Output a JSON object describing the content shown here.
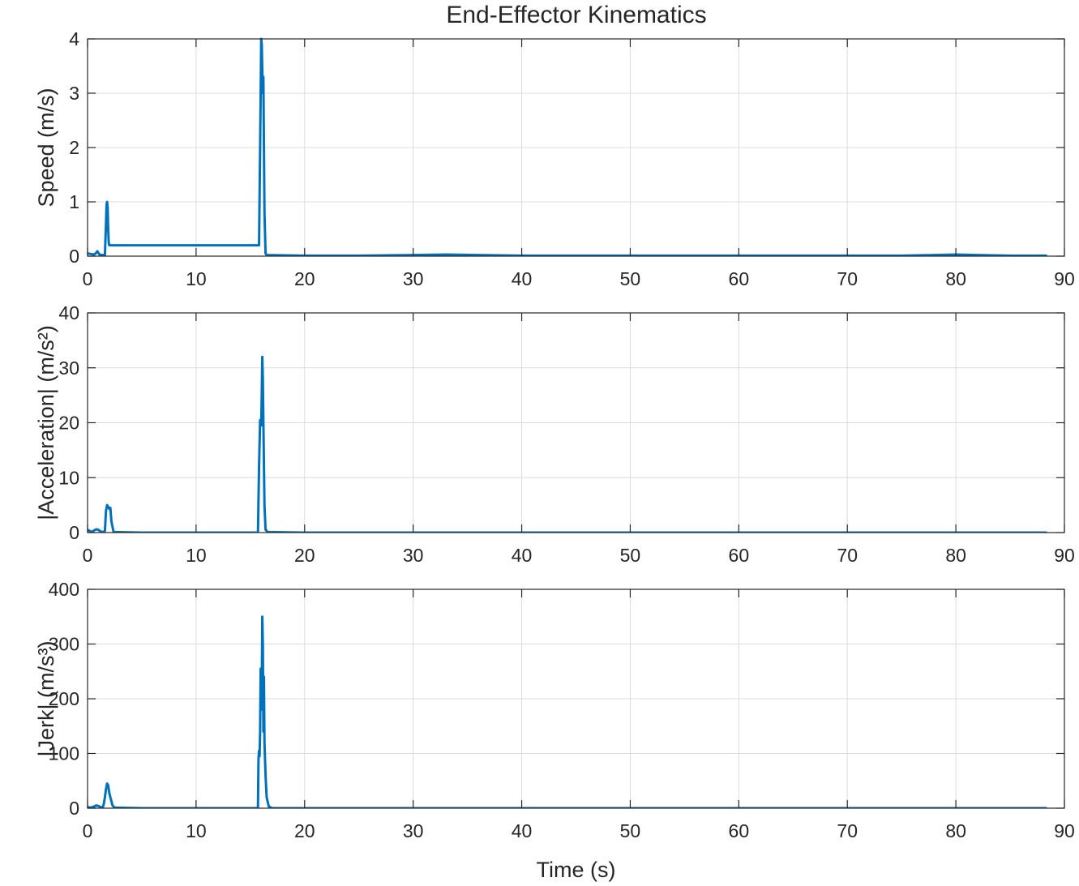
{
  "figure": {
    "title": "End-Effector Kinematics",
    "line_color": "#0072BD",
    "grid_color": "#dcdcdc",
    "axis_color": "#262626"
  },
  "chart_data": [
    {
      "type": "line",
      "title": "End-Effector Kinematics",
      "ylabel": "Speed (m/s)",
      "xlabel": "",
      "xlim": [
        0,
        90
      ],
      "ylim": [
        0,
        4
      ],
      "xticks": [
        0,
        10,
        20,
        30,
        40,
        50,
        60,
        70,
        80,
        90
      ],
      "yticks": [
        0,
        1,
        2,
        3,
        4
      ],
      "grid": true,
      "series": [
        {
          "x": [
            0,
            0.3,
            0.6,
            0.8,
            0.9,
            1.0,
            1.1,
            1.3,
            1.6,
            1.7,
            1.75,
            1.8,
            1.85,
            1.9,
            1.95,
            2.0,
            2.1,
            5,
            10,
            15,
            15.8,
            15.9,
            16.0,
            16.05,
            16.1,
            16.15,
            16.2,
            16.25,
            16.3,
            16.4,
            16.5,
            20,
            25,
            30,
            33,
            36,
            40,
            45,
            50,
            55,
            60,
            65,
            70,
            75,
            78,
            80,
            82,
            85,
            88.3
          ],
          "y": [
            0.05,
            0.04,
            0.03,
            0.06,
            0.09,
            0.06,
            0.03,
            0.02,
            0.02,
            0.6,
            0.95,
            1.0,
            0.9,
            0.5,
            0.25,
            0.2,
            0.2,
            0.2,
            0.2,
            0.2,
            0.2,
            2.0,
            4.0,
            3.9,
            3.4,
            3.0,
            3.3,
            2.0,
            0.8,
            0.05,
            0.02,
            0.01,
            0.01,
            0.02,
            0.03,
            0.02,
            0.01,
            0.01,
            0.01,
            0.01,
            0.01,
            0.01,
            0.01,
            0.01,
            0.02,
            0.03,
            0.02,
            0.01,
            0.01
          ]
        }
      ]
    },
    {
      "type": "line",
      "ylabel": "|Acceleration| (m/s²)",
      "xlabel": "",
      "xlim": [
        0,
        90
      ],
      "ylim": [
        0,
        40
      ],
      "xticks": [
        0,
        10,
        20,
        30,
        40,
        50,
        60,
        70,
        80,
        90
      ],
      "yticks": [
        0,
        10,
        20,
        30,
        40
      ],
      "grid": true,
      "series": [
        {
          "x": [
            0,
            0.2,
            0.4,
            0.6,
            0.8,
            1.0,
            1.2,
            1.4,
            1.6,
            1.7,
            1.8,
            1.9,
            2.0,
            2.1,
            2.2,
            2.4,
            5,
            10,
            15,
            15.7,
            15.8,
            15.9,
            16.0,
            16.05,
            16.1,
            16.15,
            16.2,
            16.3,
            16.4,
            16.6,
            20,
            40,
            60,
            80,
            88.3
          ],
          "y": [
            0.5,
            0.3,
            0.1,
            0.4,
            0.6,
            0.5,
            0.2,
            0.1,
            0.3,
            4.0,
            5.0,
            4.7,
            4.3,
            4.5,
            2.0,
            0.1,
            0.0,
            0.0,
            0.0,
            0.0,
            12.0,
            20.5,
            19.5,
            25.0,
            32.0,
            28.0,
            20.0,
            5.0,
            0.5,
            0.1,
            0.0,
            0.0,
            0.0,
            0.0,
            0.0
          ]
        }
      ]
    },
    {
      "type": "line",
      "ylabel": "|Jerk| (m/s³)",
      "xlabel": "Time (s)",
      "xlim": [
        0,
        90
      ],
      "ylim": [
        0,
        400
      ],
      "xticks": [
        0,
        10,
        20,
        30,
        40,
        50,
        60,
        70,
        80,
        90
      ],
      "yticks": [
        0,
        100,
        200,
        300,
        400
      ],
      "grid": true,
      "series": [
        {
          "x": [
            0,
            0.3,
            0.6,
            0.8,
            1.0,
            1.2,
            1.4,
            1.5,
            1.6,
            1.7,
            1.8,
            1.9,
            2.0,
            2.1,
            2.3,
            2.5,
            5,
            10,
            15,
            15.7,
            15.75,
            15.8,
            15.85,
            15.9,
            15.95,
            16.0,
            16.05,
            16.1,
            16.15,
            16.2,
            16.25,
            16.3,
            16.4,
            16.5,
            16.7,
            17,
            20,
            40,
            60,
            80,
            88.3
          ],
          "y": [
            2,
            1,
            3,
            5,
            4,
            2,
            1,
            8,
            20,
            35,
            45,
            42,
            28,
            20,
            5,
            1,
            0,
            0,
            0,
            0,
            90,
            105,
            95,
            140,
            255,
            180,
            210,
            350,
            300,
            140,
            240,
            120,
            60,
            20,
            3,
            0,
            0,
            0,
            0,
            0,
            0
          ]
        }
      ]
    }
  ]
}
